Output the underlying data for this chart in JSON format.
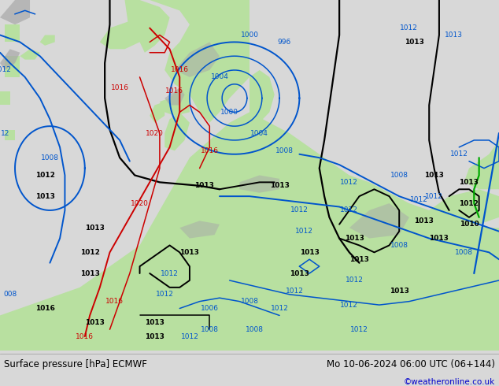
{
  "title_left": "Surface pressure [hPa] ECMWF",
  "title_right": "Mo 10-06-2024 06:00 UTC (06+144)",
  "copyright": "©weatheronline.co.uk",
  "ocean_color": "#d8d8e8",
  "land_color": "#b8e0a0",
  "gray_terrain_color": "#a8a8a8",
  "bottom_bar_color": "#d8d8d8",
  "fig_width": 6.34,
  "fig_height": 4.9,
  "dpi": 100,
  "black_line_color": "#000000",
  "blue_line_color": "#0055cc",
  "red_line_color": "#cc0000",
  "green_line_color": "#00aa00",
  "lw_main": 1.4,
  "lw_thin": 1.1
}
